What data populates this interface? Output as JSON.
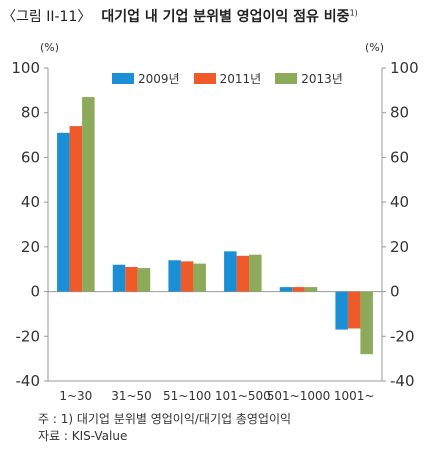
{
  "header": {
    "figure_tag": "〈그림 II-11〉",
    "title": "대기업 내 기업 분위별 영업이익 점유 비중",
    "title_sup": "1)"
  },
  "units": {
    "left": "(%)",
    "right": "(%)"
  },
  "colors": {
    "s2009": "#1a8fd6",
    "s2011": "#ef5a2a",
    "s2013": "#8caa5a",
    "axis": "#999999"
  },
  "chart_data": {
    "type": "bar",
    "categories": [
      "1~30",
      "31~50",
      "51~100",
      "101~500",
      "501~1000",
      "1001~"
    ],
    "series": [
      {
        "name": "2009년",
        "values": [
          71,
          12,
          14,
          18,
          2,
          -17
        ]
      },
      {
        "name": "2011년",
        "values": [
          74,
          11,
          13.5,
          16,
          2,
          -16.5
        ]
      },
      {
        "name": "2013년",
        "values": [
          87,
          10.5,
          12.5,
          16.5,
          2,
          -28
        ]
      }
    ],
    "ylim": [
      -40,
      100
    ],
    "yticks": [
      -40,
      -20,
      0,
      20,
      40,
      60,
      80,
      100
    ],
    "ytick_labels": [
      "-40",
      "-20",
      "0",
      "20",
      "40",
      "60",
      "80",
      "100"
    ],
    "title": "",
    "xlabel": "",
    "ylabel": "(%)",
    "legend_position": "top-center",
    "grid": false
  },
  "notes": {
    "footnote": "주 : 1) 대기업 분위별 영업이익/대기업 총영업이익",
    "source": "자료 : KIS-Value"
  }
}
